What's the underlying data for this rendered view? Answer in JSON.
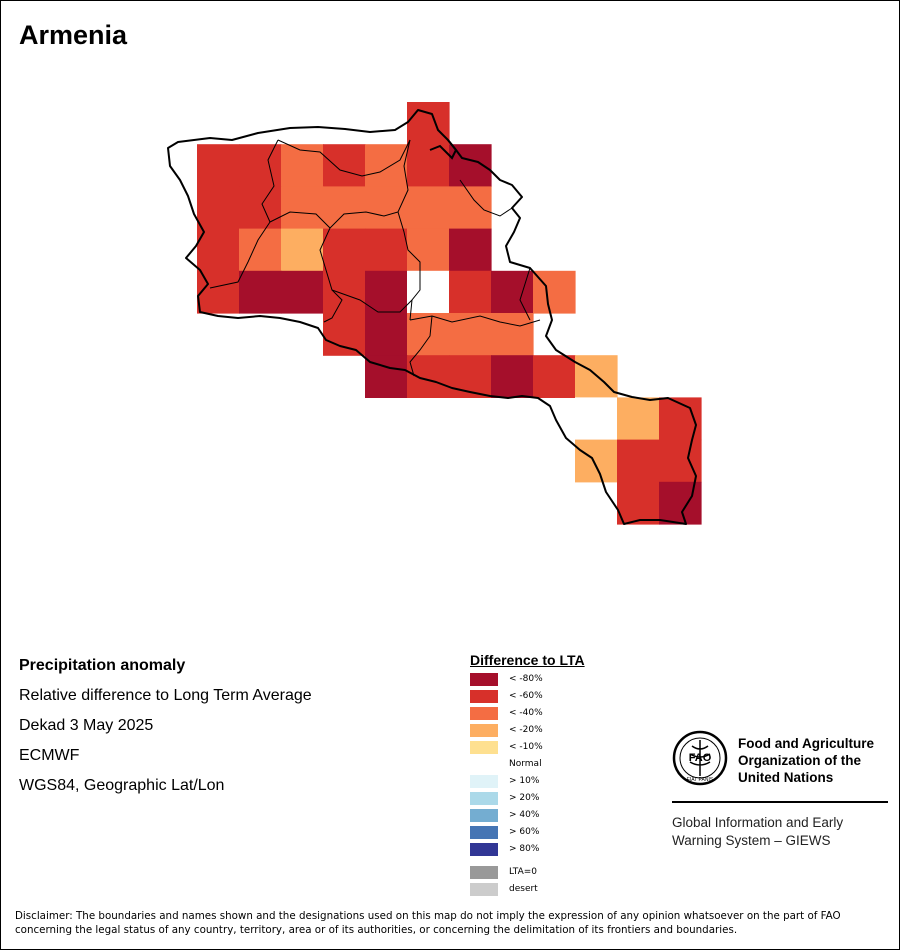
{
  "title": "Armenia",
  "info": {
    "heading": "Precipitation anomaly",
    "line1": "Relative difference to Long Term Average",
    "line2": "Dekad 3 May 2025",
    "line3": "ECMWF",
    "line4": "WGS84, Geographic Lat/Lon"
  },
  "legend": {
    "title": "Difference to LTA",
    "items": [
      {
        "label": "< -80%",
        "color": "#a50f2b"
      },
      {
        "label": "< -60%",
        "color": "#d7302a"
      },
      {
        "label": "< -40%",
        "color": "#f46d43"
      },
      {
        "label": "< -20%",
        "color": "#fdae61"
      },
      {
        "label": "< -10%",
        "color": "#fee090"
      },
      {
        "label": "Normal",
        "color": "#ffffff"
      },
      {
        "label": "> 10%",
        "color": "#e0f3f8"
      },
      {
        "label": "> 20%",
        "color": "#abd9e9"
      },
      {
        "label": "> 40%",
        "color": "#74add1"
      },
      {
        "label": "> 60%",
        "color": "#4575b4"
      },
      {
        "label": "> 80%",
        "color": "#313695"
      },
      {
        "label": "LTA=0",
        "color": "#999999"
      },
      {
        "label": "desert",
        "color": "#cccccc"
      }
    ]
  },
  "fao": {
    "name_line1": "Food and Agriculture",
    "name_line2": "Organization of the",
    "name_line3": "United Nations",
    "emblem_text": "FAO",
    "emblem_motto": "FIAT PANIS",
    "giews_line1": "Global Information and Early",
    "giews_line2": "Warning System – GIEWS"
  },
  "disclaimer": "Disclaimer: The boundaries and names shown and the designations used on this map do not imply the expression of any opinion whatsoever on the part of FAO concerning the legal status of any country, territory, area or of its authorities, or concerning the delimitation of its frontiers and boundaries.",
  "grid": {
    "columns": 13,
    "rows": 10,
    "cells": [
      [
        "",
        "",
        "",
        "",
        "",
        "-60",
        "",
        "",
        "",
        "",
        "",
        "",
        ""
      ],
      [
        "-60",
        "-60",
        "-40",
        "-60",
        "-40",
        "-60",
        "-80",
        "",
        "",
        "",
        "",
        "",
        ""
      ],
      [
        "-60",
        "-60",
        "-40",
        "-40",
        "-40",
        "-40",
        "-40",
        "",
        "",
        "",
        "",
        "",
        ""
      ],
      [
        "-60",
        "-40",
        "-20",
        "-60",
        "-60",
        "-40",
        "-80",
        "",
        "",
        "",
        "",
        "",
        ""
      ],
      [
        "-60",
        "-80",
        "-80",
        "-60",
        "-80",
        "normal",
        "-60",
        "-80",
        "-40",
        "",
        "",
        "",
        ""
      ],
      [
        "",
        "",
        "",
        "-60",
        "-80",
        "-40",
        "-40",
        "-40",
        "",
        "",
        "",
        "",
        ""
      ],
      [
        "",
        "",
        "",
        "",
        "-80",
        "-60",
        "-60",
        "-80",
        "-60",
        "-20",
        "",
        "",
        ""
      ],
      [
        "",
        "",
        "",
        "",
        "",
        "",
        "",
        "",
        "",
        "normal",
        "-20",
        "-60",
        ""
      ],
      [
        "",
        "",
        "",
        "",
        "",
        "",
        "",
        "",
        "",
        "-20",
        "-60",
        "-60",
        ""
      ],
      [
        "",
        "",
        "",
        "",
        "",
        "",
        "",
        "",
        "",
        "",
        "-60",
        "-80",
        ""
      ]
    ]
  }
}
